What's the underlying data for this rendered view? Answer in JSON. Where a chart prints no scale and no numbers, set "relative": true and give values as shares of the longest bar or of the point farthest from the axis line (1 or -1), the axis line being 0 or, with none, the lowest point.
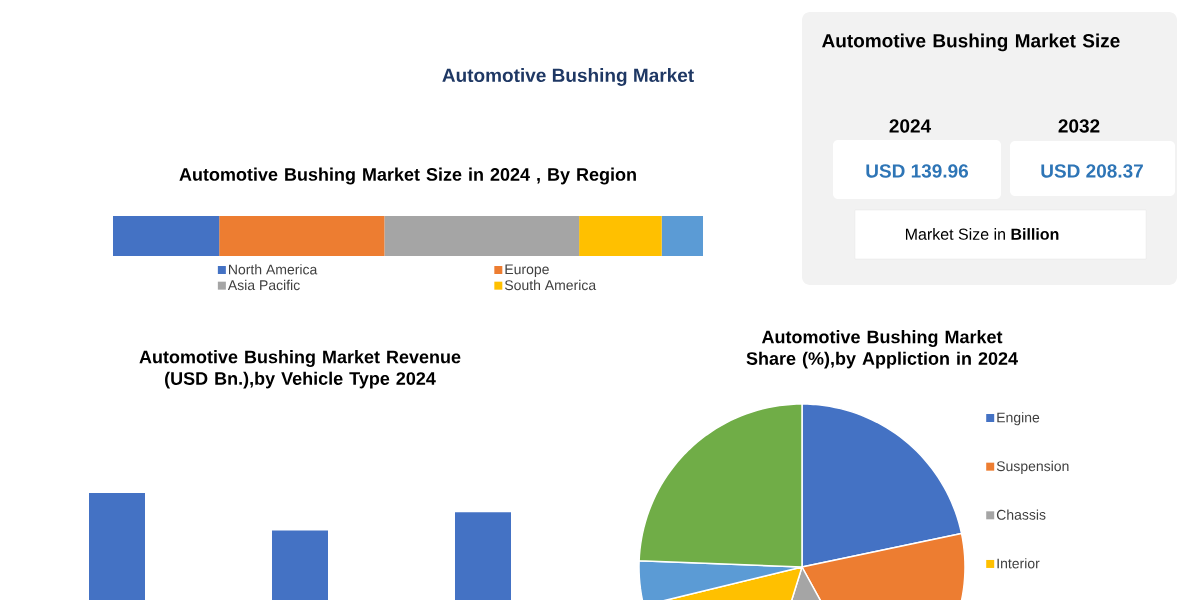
{
  "chart_data": [
    {
      "type": "bar",
      "orientation": "horizontal",
      "stacked": true,
      "relative": true,
      "title": "Automotive Bushing Market Size in 2024 , By Region",
      "annotations": [
        "Automotive Bushing Market"
      ],
      "categories": [
        null
      ],
      "legend": "bottom",
      "series": [
        {
          "name": "North America",
          "color": "#4472c4",
          "values": [
            0.18
          ]
        },
        {
          "name": "Europe",
          "color": "#ed7d31",
          "values": [
            0.28
          ]
        },
        {
          "name": "Asia Pacific",
          "color": "#a5a5a5",
          "values": [
            0.33
          ]
        },
        {
          "name": "South America",
          "color": "#ffc000",
          "values": [
            0.14
          ]
        },
        {
          "color": "#5b9bd5",
          "values": [
            0.07
          ]
        }
      ]
    },
    {
      "type": "other",
      "title": "Automotive Bushing Market Size",
      "annotations": [
        "2024",
        "2032",
        "USD 139.96",
        "USD 208.37",
        "Market Size in **Billion**"
      ]
    },
    {
      "type": "bar",
      "relative": true,
      "title": "Automotive Bushing Market Revenue (USD Bn.),by Vehicle Type 2024",
      "categories": [
        null,
        null,
        null
      ],
      "values": [
        1,
        0.65,
        0.82
      ],
      "color": "#4472c4"
    },
    {
      "type": "pie",
      "title": "Automotive Bushing Market Share (%),by Appliction in 2024",
      "categories": [
        "Engine",
        "Suspension",
        "Chassis",
        "Interior",
        null,
        null
      ],
      "values": [
        21.7,
        20.3,
        12.8,
        16.4,
        4.4,
        24.4
      ],
      "colors": [
        "#4472c4",
        "#ed7d31",
        "#a5a5a5",
        "#ffc000",
        "#5b9bd5",
        "#70ad47"
      ],
      "legend": "right"
    }
  ]
}
